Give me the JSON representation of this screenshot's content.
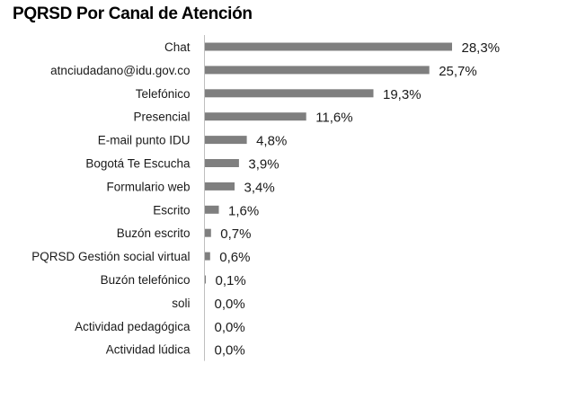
{
  "chart_data": {
    "type": "bar",
    "orientation": "horizontal",
    "title": "PQRSD Por Canal de Atención",
    "categories": [
      "Chat",
      "atnciudadano@idu.gov.co",
      "Telefónico",
      "Presencial",
      "E-mail punto IDU",
      "Bogotá Te Escucha",
      "Formulario web",
      "Escrito",
      "Buzón escrito",
      "PQRSD Gestión social virtual",
      "Buzón telefónico",
      "soli",
      "Actividad pedagógica",
      "Actividad lúdica"
    ],
    "values": [
      28.3,
      25.7,
      19.3,
      11.6,
      4.8,
      3.9,
      3.4,
      1.6,
      0.7,
      0.6,
      0.1,
      0.0,
      0.0,
      0.0
    ],
    "value_labels": [
      "28,3%",
      "25,7%",
      "19,3%",
      "11,6%",
      "4,8%",
      "3,9%",
      "3,4%",
      "1,6%",
      "0,7%",
      "0,6%",
      "0,1%",
      "0,0%",
      "0,0%",
      "0,0%"
    ],
    "xlim": [
      0,
      30
    ],
    "bar_color": "#7f7f7f",
    "axis_color": "#bfbfbf",
    "grid": false,
    "legend": "none"
  }
}
